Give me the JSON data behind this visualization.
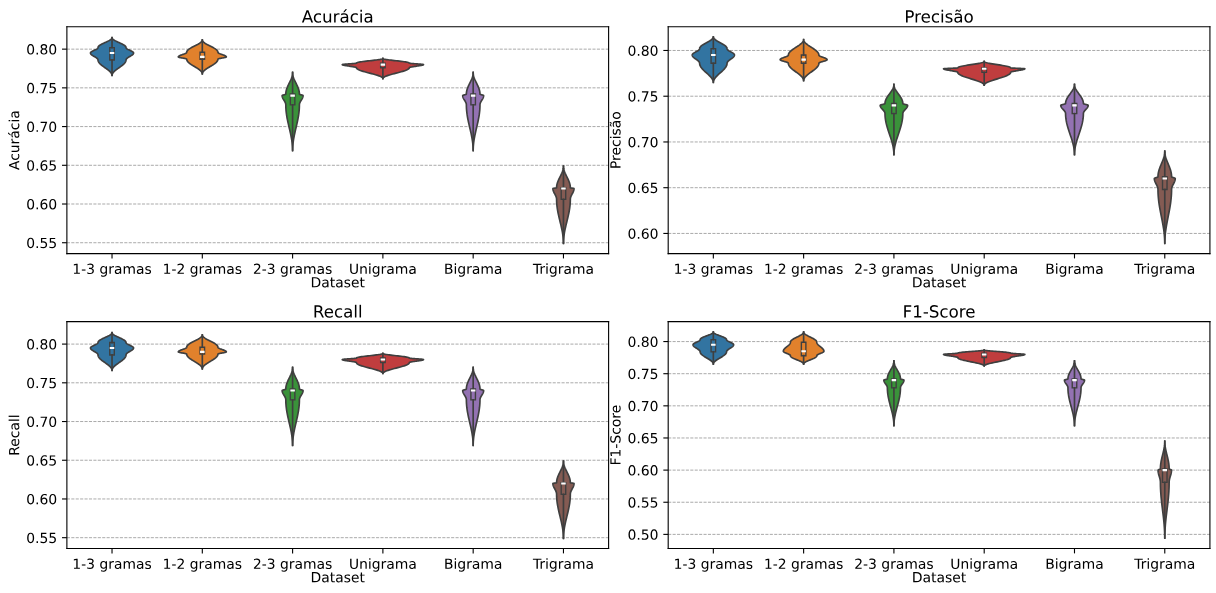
{
  "chart_data": [
    {
      "type": "box",
      "title": "Acurácia",
      "xlabel": "Dataset",
      "ylabel": "Acurácia",
      "categories": [
        "1-3 gramas",
        "1-2 gramas",
        "2-3 gramas",
        "Unigrama",
        "Bigrama",
        "Trigrama"
      ],
      "colors": [
        "#3274a1",
        "#e1812c",
        "#3a923a",
        "#c03d3e",
        "#9372b2",
        "#845b53"
      ],
      "ylim": [
        0.536,
        0.829
      ],
      "yticks": [
        {
          "value": 0.55,
          "label": "0.55"
        },
        {
          "value": 0.6,
          "label": "0.60"
        },
        {
          "value": 0.65,
          "label": "0.65"
        },
        {
          "value": 0.7,
          "label": "0.70"
        },
        {
          "value": 0.75,
          "label": "0.75"
        },
        {
          "value": 0.8,
          "label": "0.80"
        }
      ],
      "grid": "y",
      "boxes": [
        {
          "low": 0.766,
          "q1": 0.786,
          "median": 0.795,
          "q3": 0.802,
          "high": 0.815
        },
        {
          "low": 0.768,
          "q1": 0.787,
          "median": 0.79,
          "q3": 0.796,
          "high": 0.812
        },
        {
          "low": 0.669,
          "q1": 0.728,
          "median": 0.74,
          "q3": 0.742,
          "high": 0.77
        },
        {
          "low": 0.762,
          "q1": 0.776,
          "median": 0.78,
          "q3": 0.782,
          "high": 0.788
        },
        {
          "low": 0.669,
          "q1": 0.728,
          "median": 0.74,
          "q3": 0.742,
          "high": 0.77
        },
        {
          "low": 0.549,
          "q1": 0.606,
          "median": 0.62,
          "q3": 0.621,
          "high": 0.649
        }
      ]
    },
    {
      "type": "box",
      "title": "Precisão",
      "xlabel": "Dataset",
      "ylabel": "Precisão",
      "categories": [
        "1-3 gramas",
        "1-2 gramas",
        "2-3 gramas",
        "Unigrama",
        "Bigrama",
        "Trigrama"
      ],
      "colors": [
        "#3274a1",
        "#e1812c",
        "#3a923a",
        "#c03d3e",
        "#9372b2",
        "#845b53"
      ],
      "ylim": [
        0.578,
        0.826
      ],
      "yticks": [
        {
          "value": 0.6,
          "label": "0.60"
        },
        {
          "value": 0.65,
          "label": "0.65"
        },
        {
          "value": 0.7,
          "label": "0.70"
        },
        {
          "value": 0.75,
          "label": "0.75"
        },
        {
          "value": 0.8,
          "label": "0.80"
        }
      ],
      "grid": "y",
      "boxes": [
        {
          "low": 0.765,
          "q1": 0.786,
          "median": 0.795,
          "q3": 0.802,
          "high": 0.815
        },
        {
          "low": 0.767,
          "q1": 0.786,
          "median": 0.79,
          "q3": 0.795,
          "high": 0.812
        },
        {
          "low": 0.686,
          "q1": 0.731,
          "median": 0.74,
          "q3": 0.742,
          "high": 0.763
        },
        {
          "low": 0.762,
          "q1": 0.776,
          "median": 0.78,
          "q3": 0.781,
          "high": 0.788
        },
        {
          "low": 0.686,
          "q1": 0.731,
          "median": 0.74,
          "q3": 0.742,
          "high": 0.763
        },
        {
          "low": 0.589,
          "q1": 0.648,
          "median": 0.66,
          "q3": 0.662,
          "high": 0.69
        }
      ]
    },
    {
      "type": "box",
      "title": "Recall",
      "xlabel": "Dataset",
      "ylabel": "Recall",
      "categories": [
        "1-3 gramas",
        "1-2 gramas",
        "2-3 gramas",
        "Unigrama",
        "Bigrama",
        "Trigrama"
      ],
      "colors": [
        "#3274a1",
        "#e1812c",
        "#3a923a",
        "#c03d3e",
        "#9372b2",
        "#845b53"
      ],
      "ylim": [
        0.536,
        0.829
      ],
      "yticks": [
        {
          "value": 0.55,
          "label": "0.55"
        },
        {
          "value": 0.6,
          "label": "0.60"
        },
        {
          "value": 0.65,
          "label": "0.65"
        },
        {
          "value": 0.7,
          "label": "0.70"
        },
        {
          "value": 0.75,
          "label": "0.75"
        },
        {
          "value": 0.8,
          "label": "0.80"
        }
      ],
      "grid": "y",
      "boxes": [
        {
          "low": 0.766,
          "q1": 0.786,
          "median": 0.795,
          "q3": 0.802,
          "high": 0.815
        },
        {
          "low": 0.768,
          "q1": 0.787,
          "median": 0.79,
          "q3": 0.796,
          "high": 0.812
        },
        {
          "low": 0.669,
          "q1": 0.728,
          "median": 0.74,
          "q3": 0.742,
          "high": 0.77
        },
        {
          "low": 0.762,
          "q1": 0.776,
          "median": 0.78,
          "q3": 0.782,
          "high": 0.788
        },
        {
          "low": 0.669,
          "q1": 0.728,
          "median": 0.74,
          "q3": 0.742,
          "high": 0.77
        },
        {
          "low": 0.549,
          "q1": 0.606,
          "median": 0.62,
          "q3": 0.621,
          "high": 0.649
        }
      ]
    },
    {
      "type": "box",
      "title": "F1-Score",
      "xlabel": "Dataset",
      "ylabel": "F1-Score",
      "categories": [
        "1-3 gramas",
        "1-2 gramas",
        "2-3 gramas",
        "Unigrama",
        "Bigrama",
        "Trigrama"
      ],
      "colors": [
        "#3274a1",
        "#e1812c",
        "#3a923a",
        "#c03d3e",
        "#9372b2",
        "#845b53"
      ],
      "ylim": [
        0.478,
        0.831
      ],
      "yticks": [
        {
          "value": 0.5,
          "label": "0.50"
        },
        {
          "value": 0.55,
          "label": "0.55"
        },
        {
          "value": 0.6,
          "label": "0.60"
        },
        {
          "value": 0.65,
          "label": "0.65"
        },
        {
          "value": 0.7,
          "label": "0.70"
        },
        {
          "value": 0.75,
          "label": "0.75"
        },
        {
          "value": 0.8,
          "label": "0.80"
        }
      ],
      "grid": "y",
      "boxes": [
        {
          "low": 0.765,
          "q1": 0.784,
          "median": 0.795,
          "q3": 0.803,
          "high": 0.815
        },
        {
          "low": 0.765,
          "q1": 0.778,
          "median": 0.785,
          "q3": 0.799,
          "high": 0.815
        },
        {
          "low": 0.669,
          "q1": 0.728,
          "median": 0.74,
          "q3": 0.742,
          "high": 0.77
        },
        {
          "low": 0.762,
          "q1": 0.775,
          "median": 0.78,
          "q3": 0.782,
          "high": 0.787
        },
        {
          "low": 0.669,
          "q1": 0.728,
          "median": 0.74,
          "q3": 0.742,
          "high": 0.77
        },
        {
          "low": 0.494,
          "q1": 0.581,
          "median": 0.6,
          "q3": 0.602,
          "high": 0.645
        }
      ]
    }
  ]
}
